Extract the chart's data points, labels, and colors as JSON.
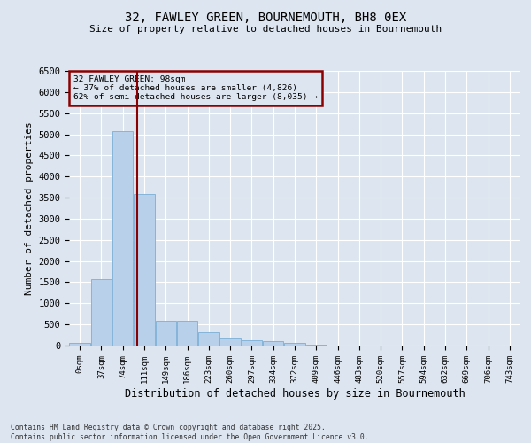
{
  "title1": "32, FAWLEY GREEN, BOURNEMOUTH, BH8 0EX",
  "title2": "Size of property relative to detached houses in Bournemouth",
  "xlabel": "Distribution of detached houses by size in Bournemouth",
  "ylabel": "Number of detached properties",
  "footer1": "Contains HM Land Registry data © Crown copyright and database right 2025.",
  "footer2": "Contains public sector information licensed under the Open Government Licence v3.0.",
  "annotation_title": "32 FAWLEY GREEN: 98sqm",
  "annotation_line1": "← 37% of detached houses are smaller (4,826)",
  "annotation_line2": "62% of semi-detached houses are larger (8,035) →",
  "bar_labels": [
    "0sqm",
    "37sqm",
    "74sqm",
    "111sqm",
    "149sqm",
    "186sqm",
    "223sqm",
    "260sqm",
    "297sqm",
    "334sqm",
    "372sqm",
    "409sqm",
    "446sqm",
    "483sqm",
    "520sqm",
    "557sqm",
    "594sqm",
    "632sqm",
    "669sqm",
    "706sqm",
    "743sqm"
  ],
  "bar_values": [
    55,
    1580,
    5080,
    3580,
    590,
    590,
    310,
    160,
    135,
    100,
    60,
    25,
    10,
    5,
    2,
    1,
    1,
    0,
    0,
    0,
    0
  ],
  "bar_color": "#b8d0ea",
  "bar_edge_color": "#7aaed6",
  "vline_color": "#8b0000",
  "vline_x": 2.68,
  "annotation_box_color": "#8b0000",
  "background_color": "#dde5f0",
  "ylim": [
    0,
    6500
  ],
  "yticks": [
    0,
    500,
    1000,
    1500,
    2000,
    2500,
    3000,
    3500,
    4000,
    4500,
    5000,
    5500,
    6000,
    6500
  ]
}
